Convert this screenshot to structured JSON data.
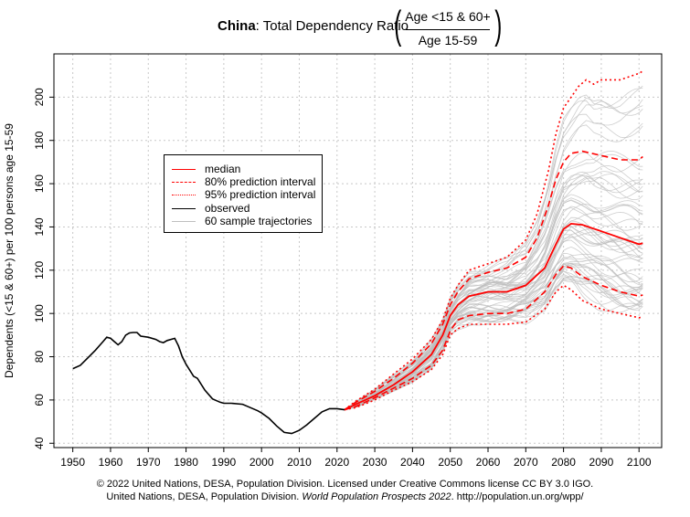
{
  "title": {
    "country": "China",
    "text": ": Total Dependency Ratio",
    "numerator": "Age <15 & 60+",
    "denominator": "Age 15-59"
  },
  "footer": {
    "line1": "© 2022 United Nations, DESA, Population Division. Licensed under Creative Commons license CC BY 3.0 IGO.",
    "line2_prefix": "United Nations, DESA, Population Division. ",
    "line2_italic": "World Population Prospects 2022",
    "line2_suffix": ". http://population.un.org/wpp/"
  },
  "colors": {
    "median": "#ff0000",
    "observed": "#000000",
    "trajectory": "#bebebe",
    "grid": "#c8c8c8"
  },
  "legend": {
    "median": "median",
    "pi80": "80% prediction interval",
    "pi95": "95% prediction interval",
    "observed": "observed",
    "trajectories": "60 sample trajectories"
  },
  "chart_data": {
    "type": "line",
    "title": "China: Total Dependency Ratio (Age <15 & 60+ / Age 15-59)",
    "xlabel": "",
    "ylabel": "Dependents (<15 & 60+) per 100 persons age 15-59",
    "xlim": [
      1945,
      2106
    ],
    "ylim": [
      38,
      220
    ],
    "xticks": [
      1950,
      1960,
      1970,
      1980,
      1990,
      2000,
      2010,
      2020,
      2030,
      2040,
      2050,
      2060,
      2070,
      2080,
      2090,
      2100
    ],
    "yticks": [
      40,
      60,
      80,
      100,
      120,
      140,
      160,
      180,
      200
    ],
    "grid": true,
    "legend_position": "upper-left",
    "observed": {
      "x": [
        1950,
        1952,
        1954,
        1956,
        1958,
        1959,
        1960,
        1961,
        1962,
        1963,
        1964,
        1965,
        1966,
        1967,
        1968,
        1970,
        1972,
        1973,
        1974,
        1975,
        1977,
        1978,
        1979,
        1980,
        1982,
        1983,
        1985,
        1987,
        1989,
        1990,
        1992,
        1995,
        1997,
        1999,
        2000,
        2002,
        2004,
        2006,
        2008,
        2010,
        2012,
        2014,
        2016,
        2018,
        2020,
        2022
      ],
      "y": [
        74.5,
        76,
        79.5,
        83,
        87,
        89,
        88.5,
        87,
        85.5,
        87,
        90,
        91,
        91.2,
        91.2,
        89.5,
        89,
        88,
        87,
        86.5,
        87.5,
        88.5,
        85,
        80,
        76.5,
        71,
        70,
        64.5,
        60.5,
        59,
        58.5,
        58.5,
        58,
        56.5,
        55,
        54,
        51.5,
        48,
        45,
        44.5,
        46,
        48.5,
        51.5,
        54.5,
        56,
        56,
        55.5
      ]
    },
    "median": {
      "x": [
        2022,
        2025,
        2030,
        2035,
        2040,
        2045,
        2048,
        2050,
        2052,
        2055,
        2060,
        2065,
        2070,
        2075,
        2078,
        2080,
        2082,
        2085,
        2090,
        2095,
        2100,
        2101
      ],
      "y": [
        55.5,
        58,
        62,
        67,
        73,
        81,
        90,
        99,
        104,
        108,
        110,
        110,
        113,
        121,
        132,
        139,
        141.5,
        141,
        138,
        135,
        132,
        132.5
      ]
    },
    "pi80_upper": {
      "x": [
        2022,
        2025,
        2030,
        2035,
        2040,
        2045,
        2048,
        2050,
        2052,
        2055,
        2060,
        2065,
        2070,
        2073,
        2076,
        2078,
        2080,
        2082,
        2085,
        2090,
        2095,
        2100,
        2101
      ],
      "y": [
        55.5,
        59,
        64,
        70,
        77,
        86,
        95,
        104,
        110,
        116,
        119,
        121,
        126,
        135,
        150,
        162,
        170,
        174,
        175,
        173,
        171,
        171,
        172.5
      ]
    },
    "pi80_lower": {
      "x": [
        2022,
        2025,
        2030,
        2035,
        2040,
        2045,
        2048,
        2050,
        2052,
        2055,
        2060,
        2065,
        2070,
        2075,
        2078,
        2080,
        2082,
        2085,
        2090,
        2095,
        2100,
        2101
      ],
      "y": [
        55.5,
        57,
        61,
        65.5,
        70,
        76,
        83,
        92,
        97,
        99,
        100,
        100,
        102,
        110,
        118,
        122,
        121,
        117,
        113,
        110,
        108,
        108.5
      ]
    },
    "pi95_upper": {
      "x": [
        2022,
        2025,
        2030,
        2035,
        2040,
        2045,
        2048,
        2050,
        2052,
        2055,
        2060,
        2065,
        2070,
        2073,
        2076,
        2078,
        2080,
        2082,
        2084,
        2086,
        2088,
        2090,
        2095,
        2100,
        2101
      ],
      "y": [
        55.5,
        59.5,
        65,
        72,
        79,
        88,
        97,
        107,
        113,
        120,
        123,
        126,
        134,
        146,
        166,
        183,
        195,
        200,
        205,
        208,
        206,
        208,
        208,
        211,
        212
      ]
    },
    "pi95_lower": {
      "x": [
        2022,
        2025,
        2030,
        2035,
        2040,
        2045,
        2048,
        2050,
        2052,
        2055,
        2060,
        2065,
        2070,
        2075,
        2078,
        2080,
        2082,
        2085,
        2090,
        2095,
        2100,
        2101
      ],
      "y": [
        55.5,
        56.5,
        60,
        64.5,
        68.5,
        74,
        81,
        90,
        93,
        95,
        95,
        95,
        96,
        102,
        110,
        113,
        111,
        106,
        102,
        100,
        98,
        98.5
      ]
    },
    "trajectory_count": 60
  }
}
